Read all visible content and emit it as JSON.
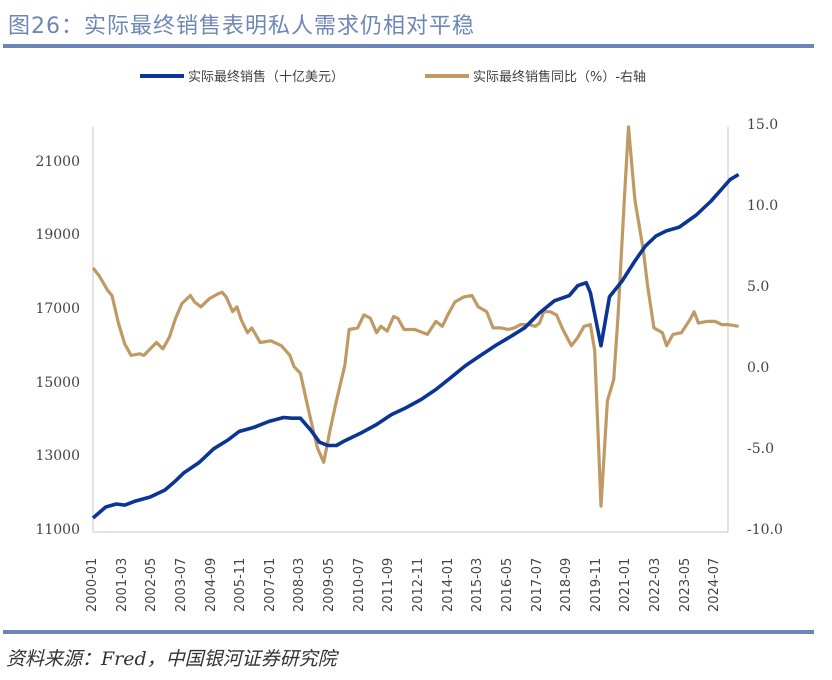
{
  "header": {
    "title": "图26：实际最终销售表明私人需求仍相对平稳"
  },
  "legend": [
    {
      "label": "实际最终销售（十亿美元）",
      "color": "#0a3594"
    },
    {
      "label": "实际最终销售同比（%）-右轴",
      "color": "#bf9a64"
    }
  ],
  "footer": {
    "source": "资料来源：Fred，中国银河证券研究院"
  },
  "colors": {
    "title": "#6e87b8",
    "rule": "#6a86b9",
    "series_left": "#0a3594",
    "series_right": "#bf9a64",
    "axis": "#d9d9d9"
  },
  "chart_data": {
    "type": "line",
    "title": "实际最终销售表明私人需求仍相对平稳",
    "xlabel": "",
    "ylabel_left": "十亿美元",
    "ylabel_right": "%",
    "ylim_left": [
      11000,
      22000
    ],
    "ylim_right": [
      -10,
      15
    ],
    "yticks_left": [
      "21000",
      "19000",
      "17000",
      "15000",
      "13000",
      "11000"
    ],
    "yticks_right": [
      "15.0",
      "10.0",
      "5.0",
      "0.0",
      "-5.0",
      "-10.0"
    ],
    "xticks": [
      "2000-01",
      "2001-03",
      "2002-05",
      "2003-07",
      "2004-09",
      "2005-11",
      "2007-01",
      "2008-03",
      "2009-05",
      "2010-07",
      "2011-09",
      "2012-11",
      "2014-01",
      "2015-03",
      "2016-05",
      "2017-07",
      "2018-09",
      "2019-11",
      "2021-01",
      "2022-03",
      "2023-05",
      "2024-07"
    ],
    "grid": false,
    "legend_position": "top",
    "series": [
      {
        "name": "实际最终销售（十亿美元）",
        "axis": "left",
        "x_month_index": [
          0,
          6,
          11,
          15,
          20,
          27,
          34,
          39,
          43,
          50,
          57,
          64,
          69,
          76,
          83,
          90,
          94,
          98,
          103,
          107,
          111,
          115,
          119,
          127,
          134,
          141,
          148,
          155,
          162,
          169,
          176,
          183,
          190,
          197,
          204,
          211,
          218,
          225,
          229,
          233,
          235,
          240,
          244,
          250,
          256,
          261,
          266,
          271,
          277,
          285,
          292,
          297,
          301,
          305
        ],
        "values": [
          11380,
          11680,
          11760,
          11730,
          11840,
          11950,
          12140,
          12390,
          12610,
          12880,
          13260,
          13510,
          13730,
          13840,
          14000,
          14110,
          14090,
          14090,
          13760,
          13440,
          13350,
          13350,
          13480,
          13700,
          13920,
          14190,
          14380,
          14600,
          14870,
          15190,
          15520,
          15790,
          16060,
          16300,
          16550,
          16950,
          17280,
          17420,
          17690,
          17770,
          17500,
          16060,
          17390,
          17820,
          18360,
          18770,
          19040,
          19180,
          19280,
          19610,
          19990,
          20310,
          20570,
          20710
        ]
      },
      {
        "name": "实际最终销售同比（%）-右轴",
        "axis": "right",
        "x_month_index": [
          0,
          3,
          7,
          9,
          12,
          15,
          18,
          22,
          24,
          27,
          30,
          33,
          36,
          39,
          42,
          46,
          48,
          51,
          55,
          59,
          61,
          63,
          66,
          68,
          70,
          73,
          75,
          79,
          84,
          89,
          93,
          95,
          98,
          101,
          104,
          106,
          109,
          112,
          115,
          119,
          121,
          125,
          128,
          131,
          134,
          136,
          139,
          142,
          144,
          147,
          152,
          158,
          162,
          165,
          168,
          171,
          175,
          179,
          182,
          186,
          189,
          193,
          196,
          199,
          202,
          206,
          209,
          211,
          213,
          216,
          219,
          222,
          226,
          229,
          232,
          235,
          237,
          240,
          243,
          246,
          248,
          251,
          253,
          256,
          260,
          262,
          265,
          269,
          271,
          274,
          278,
          282,
          284,
          286,
          290,
          294,
          297,
          300,
          305
        ],
        "values": [
          6.3,
          5.8,
          4.9,
          4.6,
          2.9,
          1.6,
          0.9,
          1.0,
          0.9,
          1.3,
          1.7,
          1.3,
          2.0,
          3.2,
          4.1,
          4.6,
          4.2,
          3.9,
          4.4,
          4.7,
          4.8,
          4.5,
          3.6,
          3.9,
          3.1,
          2.3,
          2.6,
          1.7,
          1.8,
          1.5,
          0.9,
          0.2,
          -0.2,
          -2.0,
          -3.7,
          -4.8,
          -5.7,
          -3.7,
          -1.9,
          0.3,
          2.5,
          2.6,
          3.4,
          3.2,
          2.3,
          2.7,
          2.4,
          3.3,
          3.2,
          2.5,
          2.5,
          2.2,
          3.0,
          2.7,
          3.5,
          4.2,
          4.5,
          4.6,
          3.9,
          3.6,
          2.6,
          2.6,
          2.5,
          2.6,
          2.8,
          2.8,
          2.7,
          2.9,
          3.6,
          3.6,
          3.4,
          2.5,
          1.5,
          2.0,
          2.7,
          2.8,
          1.2,
          -8.4,
          -1.9,
          -0.6,
          3.2,
          10.5,
          15.0,
          10.5,
          7.4,
          5.2,
          2.6,
          2.3,
          1.5,
          2.2,
          2.3,
          3.1,
          3.6,
          2.9,
          3.0,
          3.0,
          2.8,
          2.8,
          2.7
        ]
      }
    ]
  }
}
